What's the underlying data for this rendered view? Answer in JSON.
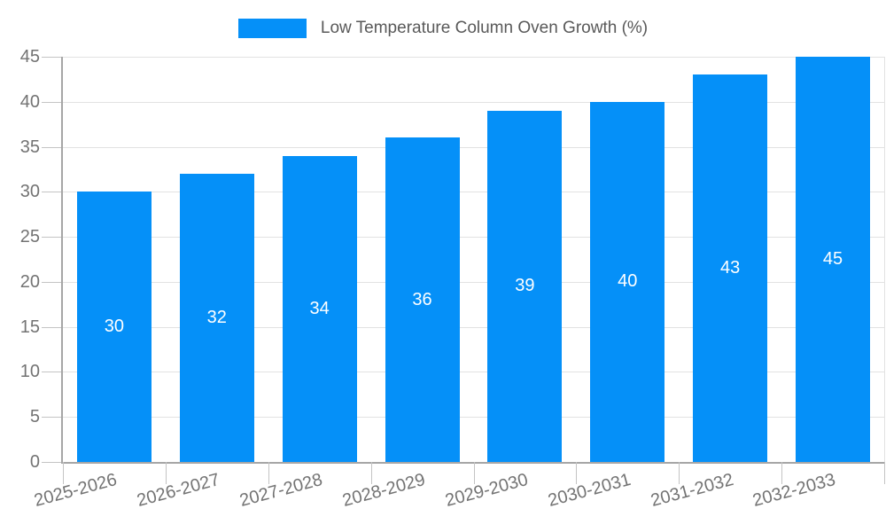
{
  "legend": {
    "label": "Low Temperature Column Oven Growth (%)"
  },
  "chart_data": {
    "type": "bar",
    "title": "Low Temperature Column Oven Growth (%)",
    "categories": [
      "2025-2026",
      "2026-2027",
      "2027-2028",
      "2028-2029",
      "2029-2030",
      "2030-2031",
      "2031-2032",
      "2032-2033"
    ],
    "values": [
      30,
      32,
      34,
      36,
      39,
      40,
      43,
      45
    ],
    "value_labels": [
      "30",
      "32",
      "34",
      "36",
      "39",
      "40",
      "43",
      "45"
    ],
    "xlabel": "",
    "ylabel": "",
    "ylim": [
      0,
      45
    ],
    "yticks": [
      0,
      5,
      10,
      15,
      20,
      25,
      30,
      35,
      40,
      45
    ],
    "grid": true,
    "legend_position": "top-center",
    "bar_width_fraction": 0.725
  },
  "colors": {
    "bar": "#0590F8",
    "value_label": "#ffffff",
    "gridline": "#e2e2e2",
    "axis_line": "#a6a6a6",
    "tick": "#c4c4c4",
    "tick_label": "#737373",
    "legend_text": "#595959",
    "background": "#ffffff"
  }
}
